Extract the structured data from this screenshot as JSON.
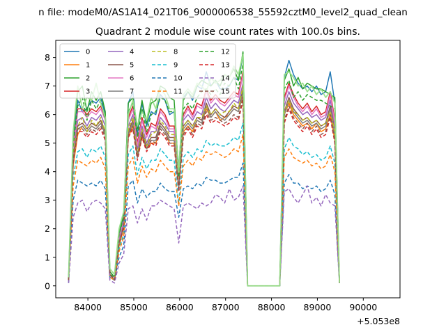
{
  "chart_data": {
    "type": "line",
    "suptitle": "n file: modeM0/AS1A14_021T06_9000006538_55592cztM0_level2_quad_clean",
    "title": "Quadrant 2 module wise count rates with 100.0s bins.",
    "xlabel": "",
    "ylabel": "",
    "offset_text": "+5.053e8",
    "x_offset": 505300000,
    "xlim": [
      83300,
      90800
    ],
    "ylim": [
      -0.42,
      8.6
    ],
    "xticks": [
      84000,
      85000,
      86000,
      87000,
      88000,
      89000,
      90000
    ],
    "xtick_labels": [
      "84000",
      "85000",
      "86000",
      "87000",
      "88000",
      "89000",
      "90000"
    ],
    "yticks": [
      0,
      1,
      2,
      3,
      4,
      5,
      6,
      7,
      8
    ],
    "ytick_labels": [
      "0",
      "1",
      "2",
      "3",
      "4",
      "5",
      "6",
      "7",
      "8"
    ],
    "grid": false,
    "legend_position": "top-left",
    "legend_columns": 4,
    "x_start": 83580,
    "x_step": 100,
    "series": [
      {
        "name": "0",
        "color": "#1f77b4",
        "dash": "solid",
        "values": [
          0.3,
          5.2,
          6.5,
          6.1,
          6.2,
          6.5,
          6.4,
          6.6,
          6.0,
          0.5,
          0.3,
          1.8,
          2.4,
          6.4,
          6.8,
          5.3,
          6.4,
          5.6,
          6.1,
          6.0,
          6.7,
          6.5,
          6.0,
          6.1,
          4.1,
          6.6,
          6.8,
          6.5,
          7.0,
          6.9,
          7.5,
          7.0,
          7.2,
          6.9,
          6.9,
          7.0,
          7.3,
          7.2,
          8.1,
          0,
          0,
          0,
          0,
          0,
          0,
          0,
          0,
          7.3,
          7.9,
          7.4,
          7.1,
          6.9,
          7.0,
          6.8,
          7.0,
          6.7,
          6.8,
          7.5,
          6.4,
          0.1
        ]
      },
      {
        "name": "1",
        "color": "#ff7f0e",
        "dash": "solid",
        "values": [
          0.2,
          4.2,
          5.3,
          5.6,
          5.4,
          5.6,
          5.5,
          5.7,
          5.3,
          0.4,
          0.2,
          1.4,
          2.0,
          5.2,
          5.6,
          4.5,
          5.2,
          4.8,
          5.0,
          5.0,
          5.6,
          5.4,
          5.0,
          5.0,
          3.4,
          5.4,
          5.6,
          5.4,
          5.8,
          5.7,
          6.2,
          5.9,
          6.1,
          5.8,
          5.9,
          6.0,
          6.2,
          6.1,
          6.7,
          0,
          0,
          0,
          0,
          0,
          0,
          0,
          0,
          6.0,
          6.4,
          6.0,
          5.8,
          5.6,
          5.7,
          5.5,
          5.7,
          5.4,
          5.5,
          6.0,
          5.1,
          0.1
        ]
      },
      {
        "name": "2",
        "color": "#2ca02c",
        "dash": "solid",
        "values": [
          0.2,
          5.3,
          6.8,
          7.0,
          6.1,
          6.8,
          6.5,
          6.8,
          6.1,
          0.5,
          0.3,
          1.9,
          2.5,
          6.4,
          6.6,
          5.5,
          6.5,
          5.7,
          6.4,
          6.5,
          7.0,
          6.9,
          6.6,
          6.5,
          3.9,
          6.5,
          6.8,
          6.6,
          7.0,
          7.2,
          7.1,
          7.0,
          7.2,
          7.0,
          7.4,
          7.3,
          7.6,
          7.2,
          8.2,
          0,
          0,
          0,
          0,
          0,
          0,
          0,
          0,
          7.2,
          7.6,
          7.0,
          7.3,
          6.9,
          7.1,
          7.0,
          6.9,
          6.9,
          6.8,
          6.7,
          6.6,
          0.1
        ]
      },
      {
        "name": "3",
        "color": "#d62728",
        "dash": "solid",
        "values": [
          0.2,
          4.9,
          6.2,
          6.2,
          6.0,
          6.2,
          6.1,
          6.3,
          5.9,
          0.4,
          0.3,
          1.7,
          2.3,
          5.9,
          6.3,
          5.0,
          5.9,
          5.3,
          5.7,
          5.6,
          6.2,
          6.0,
          5.6,
          5.6,
          3.7,
          6.0,
          6.3,
          6.0,
          6.4,
          6.3,
          6.9,
          6.5,
          6.7,
          6.5,
          6.4,
          6.6,
          6.8,
          6.7,
          7.5,
          0,
          0,
          0,
          0,
          0,
          0,
          0,
          0,
          6.6,
          7.1,
          6.7,
          6.4,
          6.2,
          6.4,
          6.1,
          6.3,
          6.0,
          6.1,
          6.8,
          5.8,
          0.1
        ]
      },
      {
        "name": "4",
        "color": "#9467bd",
        "dash": "solid",
        "values": [
          0.2,
          4.6,
          5.8,
          5.9,
          5.6,
          5.9,
          5.8,
          6.0,
          5.6,
          0.4,
          0.2,
          1.6,
          2.2,
          5.6,
          6.0,
          4.8,
          5.6,
          5.0,
          5.4,
          5.4,
          5.9,
          5.7,
          5.4,
          5.4,
          3.6,
          5.8,
          6.0,
          5.8,
          6.1,
          6.0,
          6.6,
          6.2,
          6.4,
          6.2,
          6.1,
          6.3,
          6.5,
          6.4,
          7.1,
          0,
          0,
          0,
          0,
          0,
          0,
          0,
          0,
          6.3,
          6.8,
          6.4,
          6.2,
          6.0,
          6.1,
          5.9,
          6.0,
          5.8,
          5.9,
          6.5,
          5.6,
          0.1
        ]
      },
      {
        "name": "5",
        "color": "#8c564b",
        "dash": "solid",
        "values": [
          0.2,
          4.5,
          5.6,
          5.7,
          5.5,
          5.7,
          5.6,
          5.8,
          5.4,
          0.4,
          0.2,
          1.5,
          2.1,
          5.4,
          5.8,
          4.6,
          5.4,
          4.9,
          5.2,
          5.2,
          5.7,
          5.5,
          5.2,
          5.2,
          3.5,
          5.6,
          5.8,
          5.6,
          5.9,
          5.8,
          6.4,
          6.0,
          6.2,
          6.0,
          5.9,
          6.1,
          6.3,
          6.2,
          6.9,
          0,
          0,
          0,
          0,
          0,
          0,
          0,
          0,
          6.1,
          6.6,
          6.2,
          6.0,
          5.8,
          5.9,
          5.7,
          5.8,
          5.6,
          5.7,
          6.3,
          5.4,
          0.1
        ]
      },
      {
        "name": "6",
        "color": "#e377c2",
        "dash": "solid",
        "values": [
          0.2,
          4.8,
          6.1,
          6.1,
          5.9,
          6.1,
          6.0,
          6.2,
          5.8,
          0.4,
          0.3,
          1.7,
          2.3,
          5.8,
          6.2,
          4.9,
          5.8,
          5.2,
          5.6,
          5.5,
          6.1,
          5.9,
          5.5,
          5.5,
          3.7,
          5.9,
          6.2,
          5.9,
          6.3,
          6.2,
          6.8,
          6.4,
          6.6,
          6.4,
          6.3,
          6.5,
          6.7,
          6.6,
          7.4,
          0,
          0,
          0,
          0,
          0,
          0,
          0,
          0,
          6.5,
          7.0,
          6.6,
          6.3,
          6.1,
          6.3,
          6.0,
          6.2,
          5.9,
          6.0,
          6.7,
          5.7,
          0.1
        ]
      },
      {
        "name": "7",
        "color": "#7f7f7f",
        "dash": "solid",
        "values": [
          0.2,
          4.4,
          5.5,
          5.6,
          5.4,
          5.6,
          5.5,
          5.7,
          5.3,
          0.4,
          0.2,
          1.5,
          2.1,
          5.3,
          5.7,
          4.5,
          5.3,
          4.8,
          5.1,
          5.1,
          5.6,
          5.4,
          5.1,
          5.1,
          3.4,
          5.5,
          5.7,
          5.5,
          5.8,
          5.7,
          6.3,
          5.9,
          6.1,
          5.9,
          5.8,
          6.0,
          6.2,
          6.1,
          6.8,
          0,
          0,
          0,
          0,
          0,
          0,
          0,
          0,
          6.0,
          6.5,
          6.1,
          5.9,
          5.7,
          5.8,
          5.6,
          5.7,
          5.5,
          5.6,
          6.2,
          5.3,
          0.1
        ]
      },
      {
        "name": "8",
        "color": "#bcbd22",
        "dash": "dashed",
        "values": [
          0.2,
          4.6,
          5.6,
          5.9,
          5.4,
          5.8,
          5.6,
          5.9,
          5.4,
          0.4,
          0.2,
          1.5,
          2.1,
          5.5,
          5.9,
          4.6,
          5.5,
          4.9,
          5.3,
          5.4,
          5.8,
          5.6,
          5.3,
          5.3,
          3.5,
          5.6,
          5.8,
          5.6,
          5.9,
          5.9,
          6.3,
          6.0,
          6.2,
          6.0,
          6.1,
          6.1,
          6.4,
          6.2,
          7.0,
          0,
          0,
          0,
          0,
          0,
          0,
          0,
          0,
          6.1,
          6.5,
          6.1,
          6.0,
          5.8,
          5.9,
          5.7,
          5.8,
          5.6,
          5.7,
          6.1,
          5.4,
          0.1
        ]
      },
      {
        "name": "9",
        "color": "#17becf",
        "dash": "dashed",
        "values": [
          0.2,
          3.8,
          4.7,
          4.8,
          4.5,
          4.8,
          4.7,
          4.9,
          4.5,
          0.3,
          0.2,
          1.3,
          1.8,
          4.6,
          4.9,
          3.9,
          4.5,
          4.1,
          4.4,
          4.4,
          4.8,
          4.6,
          4.4,
          4.4,
          2.9,
          4.5,
          4.7,
          4.5,
          4.8,
          4.7,
          5.1,
          4.9,
          5.0,
          4.9,
          4.9,
          5.0,
          5.2,
          5.1,
          5.7,
          0,
          0,
          0,
          0,
          0,
          0,
          0,
          0,
          4.8,
          5.2,
          4.9,
          4.8,
          4.6,
          4.7,
          4.5,
          4.6,
          4.4,
          4.5,
          4.9,
          4.3,
          0.1
        ]
      },
      {
        "name": "10",
        "color": "#1f77b4",
        "dash": "dashed",
        "values": [
          0.1,
          3.0,
          3.7,
          3.6,
          3.5,
          3.6,
          3.5,
          3.7,
          3.4,
          0.3,
          0.2,
          1.0,
          1.4,
          3.5,
          3.7,
          2.9,
          3.4,
          3.1,
          3.3,
          3.3,
          3.6,
          3.4,
          3.3,
          3.3,
          2.4,
          3.4,
          3.5,
          3.4,
          3.6,
          3.5,
          3.8,
          3.7,
          3.7,
          3.6,
          3.6,
          3.7,
          3.8,
          3.8,
          4.3,
          0,
          0,
          0,
          0,
          0,
          0,
          0,
          0,
          3.6,
          3.9,
          3.6,
          3.6,
          3.4,
          3.5,
          3.4,
          3.5,
          3.3,
          3.4,
          3.7,
          3.2,
          0.1
        ]
      },
      {
        "name": "11",
        "color": "#ff7f0e",
        "dash": "dashed",
        "values": [
          0.2,
          3.5,
          4.4,
          4.3,
          4.2,
          4.4,
          4.3,
          4.5,
          4.1,
          0.3,
          0.2,
          1.2,
          1.7,
          4.2,
          4.5,
          3.6,
          4.2,
          3.8,
          4.1,
          4.0,
          4.4,
          4.2,
          4.0,
          4.0,
          2.8,
          4.2,
          4.4,
          4.2,
          4.5,
          4.4,
          4.7,
          4.6,
          4.7,
          4.6,
          4.5,
          4.6,
          4.8,
          4.7,
          5.3,
          0,
          0,
          0,
          0,
          0,
          0,
          0,
          0,
          4.5,
          4.8,
          4.5,
          4.4,
          4.3,
          4.4,
          4.2,
          4.3,
          4.1,
          4.2,
          4.6,
          4.0,
          0.1
        ]
      },
      {
        "name": "12",
        "color": "#2ca02c",
        "dash": "dashed",
        "values": [
          0.2,
          4.9,
          6.3,
          6.6,
          5.8,
          6.5,
          6.2,
          6.5,
          5.8,
          0.4,
          0.3,
          1.8,
          2.4,
          6.1,
          6.4,
          5.2,
          6.2,
          5.4,
          6.0,
          6.1,
          6.6,
          6.5,
          6.1,
          6.1,
          3.8,
          6.2,
          6.4,
          6.2,
          6.6,
          6.8,
          6.9,
          6.7,
          6.9,
          6.7,
          7.1,
          7.0,
          7.3,
          6.9,
          7.8,
          0,
          0,
          0,
          0,
          0,
          0,
          0,
          0,
          6.9,
          7.2,
          6.6,
          6.8,
          6.5,
          6.7,
          6.6,
          6.5,
          6.5,
          6.4,
          6.3,
          6.2,
          0.1
        ]
      },
      {
        "name": "13",
        "color": "#d62728",
        "dash": "dashed",
        "values": [
          0.2,
          4.3,
          5.4,
          5.4,
          5.2,
          5.4,
          5.3,
          5.5,
          5.1,
          0.4,
          0.2,
          1.5,
          2.0,
          5.2,
          5.5,
          4.4,
          5.2,
          4.7,
          5.0,
          4.9,
          5.4,
          5.2,
          4.9,
          4.9,
          3.3,
          5.2,
          5.5,
          5.2,
          5.6,
          5.5,
          6.0,
          5.7,
          5.8,
          5.7,
          5.6,
          5.7,
          5.9,
          5.8,
          6.5,
          0,
          0,
          0,
          0,
          0,
          0,
          0,
          0,
          5.7,
          6.2,
          5.8,
          5.6,
          5.4,
          5.6,
          5.3,
          5.5,
          5.2,
          5.3,
          5.9,
          5.0,
          0.1
        ]
      },
      {
        "name": "14",
        "color": "#9467bd",
        "dash": "dashed",
        "values": [
          0.1,
          2.4,
          2.9,
          3.0,
          2.6,
          2.9,
          3.0,
          2.9,
          2.7,
          0.2,
          0.1,
          0.8,
          1.1,
          2.7,
          2.8,
          2.2,
          2.7,
          2.3,
          2.8,
          2.8,
          3.0,
          2.9,
          2.8,
          2.7,
          1.5,
          2.8,
          2.9,
          2.8,
          2.7,
          2.9,
          2.8,
          2.9,
          3.2,
          3.1,
          2.9,
          3.4,
          3.0,
          3.1,
          3.5,
          0,
          0,
          0,
          0,
          0,
          0,
          0,
          0,
          3.3,
          3.4,
          3.1,
          2.9,
          3.2,
          3.5,
          2.9,
          3.1,
          2.8,
          3.2,
          2.9,
          2.8,
          0.1
        ]
      },
      {
        "name": "15",
        "color": "#8c564b",
        "dash": "dashed",
        "values": [
          0.2,
          4.4,
          5.5,
          5.5,
          5.3,
          5.5,
          5.4,
          5.6,
          5.2,
          0.4,
          0.2,
          1.5,
          2.1,
          5.3,
          5.6,
          4.5,
          5.3,
          4.8,
          5.1,
          5.0,
          5.5,
          5.3,
          5.0,
          5.0,
          3.4,
          5.3,
          5.6,
          5.3,
          5.7,
          5.6,
          6.1,
          5.8,
          5.9,
          5.8,
          5.7,
          5.8,
          6.0,
          5.9,
          6.6,
          0,
          0,
          0,
          0,
          0,
          0,
          0,
          0,
          5.8,
          6.3,
          5.9,
          5.7,
          5.5,
          5.7,
          5.4,
          5.6,
          5.3,
          5.4,
          6.0,
          5.1,
          0.1
        ]
      }
    ],
    "overlay_series": {
      "name": "",
      "color": "#98df8a",
      "dash": "solid",
      "values": [
        0.3,
        5.4,
        7.0,
        6.2,
        6.6,
        6.5,
        7.1,
        6.4,
        5.9,
        0.6,
        0.4,
        2.0,
        2.6,
        6.0,
        6.5,
        5.6,
        6.1,
        5.8,
        6.6,
        6.2,
        6.9,
        6.7,
        6.2,
        6.2,
        4.0,
        6.7,
        6.9,
        6.7,
        7.1,
        7.0,
        6.8,
        7.3,
        7.1,
        7.2,
        7.4,
        7.3,
        7.7,
        7.4,
        8.1,
        0,
        0,
        0,
        0,
        0,
        0,
        0,
        0,
        7.4,
        7.5,
        7.3,
        7.0,
        7.1,
        6.8,
        7.0,
        6.7,
        6.9,
        6.6,
        6.8,
        6.4,
        0.1
      ]
    }
  }
}
